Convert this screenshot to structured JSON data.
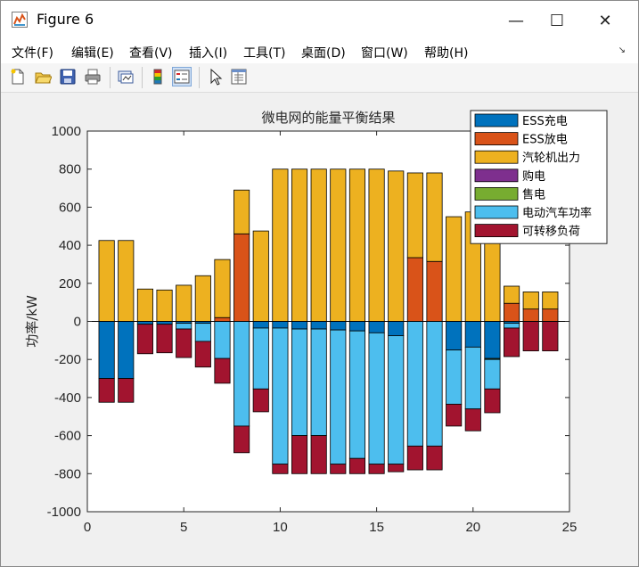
{
  "window": {
    "title": "Figure 6",
    "minimize_glyph": "—",
    "maximize_glyph": "☐",
    "close_glyph": "✕"
  },
  "menu": [
    "文件(F)",
    "编辑(E)",
    "查看(V)",
    "插入(I)",
    "工具(T)",
    "桌面(D)",
    "窗口(W)",
    "帮助(H)"
  ],
  "toolbar_icons": [
    "new-figure-icon",
    "open-file-icon",
    "save-icon",
    "print-icon",
    "link-plot-icon",
    "colorbar-icon",
    "legend-icon",
    "pointer-icon",
    "property-inspector-icon"
  ],
  "chart_data": {
    "type": "bar",
    "stacked": true,
    "title": "微电网的能量平衡结果",
    "xlabel": "",
    "ylabel": "功率/kW",
    "xlim": [
      0,
      25
    ],
    "ylim": [
      -1000,
      1000
    ],
    "xticks": [
      0,
      5,
      10,
      15,
      20,
      25
    ],
    "yticks": [
      -1000,
      -800,
      -600,
      -400,
      -200,
      0,
      200,
      400,
      600,
      800,
      1000
    ],
    "legend_position": "top-right",
    "x": [
      1,
      2,
      3,
      4,
      5,
      6,
      7,
      8,
      9,
      10,
      11,
      12,
      13,
      14,
      15,
      16,
      17,
      18,
      19,
      20,
      21,
      22,
      23,
      24
    ],
    "series": [
      {
        "name": "ESS充电",
        "color": "#0072BD",
        "values": [
          -300,
          -300,
          -15,
          -15,
          -10,
          -10,
          0,
          0,
          -35,
          -35,
          -40,
          -40,
          -45,
          -50,
          -60,
          -75,
          0,
          0,
          -150,
          -135,
          -195,
          -10,
          0,
          0
        ]
      },
      {
        "name": "ESS放电",
        "color": "#D95319",
        "values": [
          0,
          0,
          0,
          0,
          0,
          0,
          20,
          460,
          0,
          0,
          0,
          0,
          0,
          0,
          0,
          0,
          335,
          315,
          0,
          0,
          0,
          95,
          65,
          65
        ]
      },
      {
        "name": "汽轮机出力",
        "color": "#EDB120",
        "values": [
          425,
          425,
          170,
          165,
          190,
          240,
          305,
          230,
          475,
          800,
          800,
          800,
          800,
          800,
          800,
          790,
          445,
          465,
          550,
          575,
          490,
          90,
          90,
          90
        ]
      },
      {
        "name": "购电",
        "color": "#7E2F8E",
        "values": [
          0,
          0,
          0,
          0,
          0,
          0,
          0,
          0,
          0,
          0,
          0,
          0,
          0,
          0,
          0,
          0,
          0,
          0,
          0,
          0,
          0,
          0,
          0,
          0
        ]
      },
      {
        "name": "售电",
        "color": "#77AC30",
        "values": [
          0,
          0,
          0,
          0,
          0,
          0,
          0,
          0,
          0,
          0,
          0,
          0,
          0,
          0,
          0,
          0,
          0,
          0,
          0,
          0,
          -5,
          0,
          0,
          0
        ]
      },
      {
        "name": "电动汽车功率",
        "color": "#4DBEEE",
        "values": [
          0,
          0,
          0,
          0,
          -30,
          -95,
          -195,
          -550,
          -320,
          -715,
          -560,
          -560,
          -705,
          -670,
          -690,
          -675,
          -655,
          -655,
          -285,
          -325,
          -155,
          -25,
          0,
          0
        ]
      },
      {
        "name": "可转移负荷",
        "color": "#A2142F",
        "values": [
          -125,
          -125,
          -155,
          -150,
          -150,
          -135,
          -130,
          -140,
          -120,
          -50,
          -200,
          -200,
          -50,
          -80,
          -50,
          -40,
          -125,
          -125,
          -115,
          -115,
          -125,
          -150,
          -155,
          -155
        ]
      }
    ]
  }
}
